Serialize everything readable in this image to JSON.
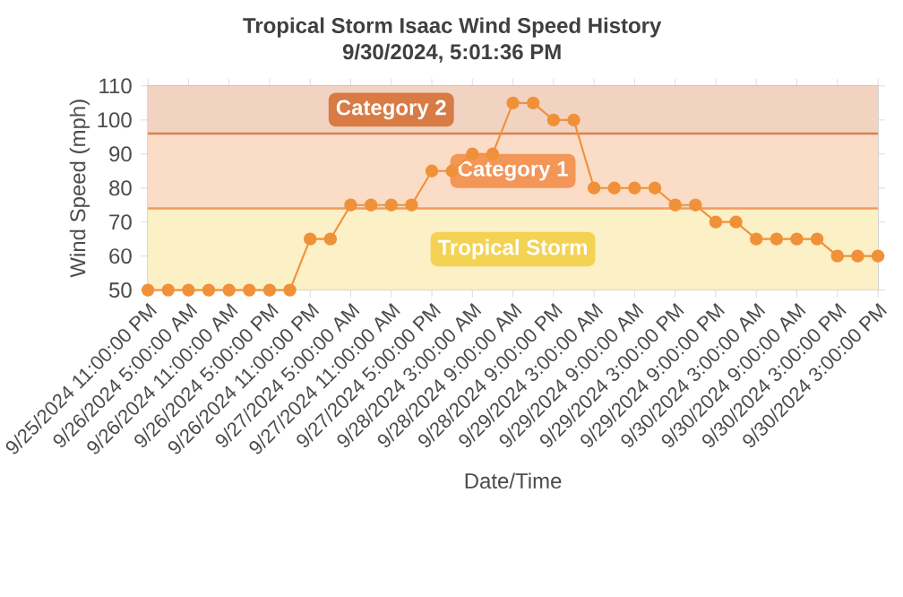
{
  "chart_data": {
    "type": "line",
    "title": "Tropical Storm Isaac Wind Speed History",
    "subtitle": "9/30/2024, 5:01:36 PM",
    "xlabel": "Date/Time",
    "ylabel": "Wind Speed (mph)",
    "categories": [
      "9/25/2024 11:00:00 PM",
      null,
      "9/26/2024 5:00:00 AM",
      null,
      "9/26/2024 11:00:00 AM",
      null,
      "9/26/2024 5:00:00 PM",
      null,
      "9/26/2024 11:00:00 PM",
      null,
      "9/27/2024 5:00:00 AM",
      null,
      "9/27/2024 11:00:00 AM",
      null,
      "9/27/2024 5:00:00 PM",
      null,
      "9/28/2024 3:00:00 AM",
      null,
      "9/28/2024 9:00:00 AM",
      null,
      "9/28/2024 9:00:00 PM",
      null,
      "9/29/2024 3:00:00 AM",
      null,
      "9/29/2024 9:00:00 AM",
      null,
      "9/29/2024 3:00:00 PM",
      null,
      "9/29/2024 9:00:00 PM",
      null,
      "9/30/2024 3:00:00 AM",
      null,
      "9/30/2024 9:00:00 AM",
      null,
      "9/30/2024 3:00:00 PM",
      null,
      "9/30/2024 3:00:00 PM"
    ],
    "series": [
      {
        "color": "#f0913a",
        "values": [
          50,
          50,
          50,
          50,
          50,
          50,
          50,
          50,
          65,
          65,
          75,
          75,
          75,
          75,
          85,
          85,
          90,
          90,
          105,
          105,
          100,
          100,
          80,
          80,
          80,
          80,
          75,
          75,
          70,
          70,
          65,
          65,
          65,
          65,
          60,
          60,
          60
        ]
      }
    ],
    "ylim": [
      50,
      110
    ],
    "yticks": [
      50,
      60,
      70,
      80,
      90,
      100,
      110
    ],
    "grid": true,
    "marker": "circle",
    "line_style": "solid",
    "ref_lines": [
      {
        "axis": "y",
        "value": 74,
        "color": "#f59a5e"
      },
      {
        "axis": "y",
        "value": 96,
        "color": "#d9824f"
      }
    ],
    "bands": [
      {
        "axis": "y",
        "from": 50,
        "to": 74,
        "label": "Tropical Storm",
        "color": "#fbf0c6"
      },
      {
        "axis": "y",
        "from": 74,
        "to": 96,
        "label": "Category 1",
        "color": "#fbdcc7"
      },
      {
        "axis": "y",
        "from": 96,
        "to": 110,
        "label": "Category 2",
        "color": "#f2d3c1"
      }
    ]
  }
}
